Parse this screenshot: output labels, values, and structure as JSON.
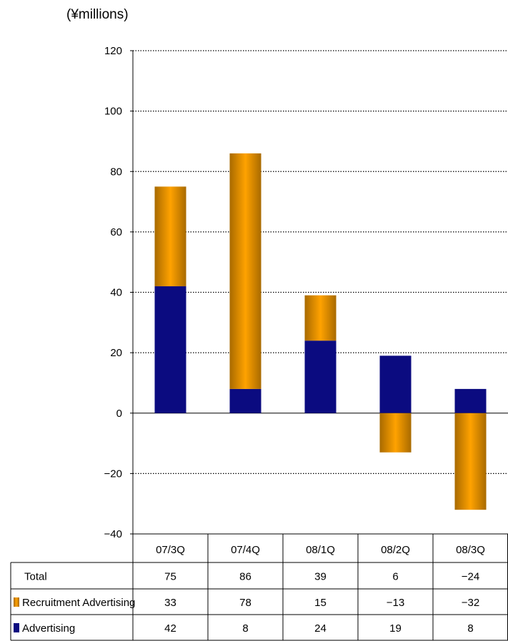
{
  "unit_label": "(¥millions)",
  "colors": {
    "recruitment": "#f59a00",
    "advertising": "#0b0b80",
    "grid": "#000000"
  },
  "chart_data": {
    "type": "bar",
    "stacked": true,
    "categories": [
      "07/3Q",
      "07/4Q",
      "08/1Q",
      "08/2Q",
      "08/3Q"
    ],
    "series": [
      {
        "name": "Recruitment Advertising",
        "values": [
          33,
          78,
          15,
          -13,
          -32
        ]
      },
      {
        "name": "Advertising",
        "values": [
          42,
          8,
          24,
          19,
          8
        ]
      }
    ],
    "totals_label": "Total",
    "totals": [
      75,
      86,
      39,
      6,
      -24
    ],
    "ylim": [
      -40,
      120
    ],
    "yticks": [
      120,
      100,
      80,
      60,
      40,
      20,
      0,
      -20,
      -40
    ],
    "grid": true,
    "legend": "data-table"
  }
}
